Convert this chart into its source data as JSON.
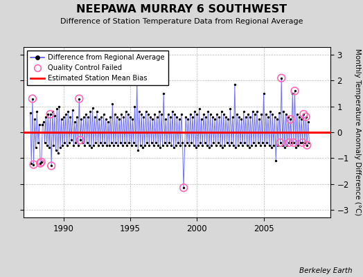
{
  "title": "NEEPAWA MURRAY 6 SOUTHWEST",
  "subtitle": "Difference of Station Temperature Data from Regional Average",
  "ylabel": "Monthly Temperature Anomaly Difference (°C)",
  "xlim": [
    1987.0,
    2010.0
  ],
  "ylim": [
    -3.3,
    3.3
  ],
  "yticks": [
    -3,
    -2,
    -1,
    0,
    1,
    2,
    3
  ],
  "xticks": [
    1990,
    1995,
    2000,
    2005
  ],
  "bias_value": 0.0,
  "line_color": "#5555ff",
  "dot_color": "#000000",
  "bias_color": "#ff0000",
  "qc_color": "#ff69b4",
  "bg_color": "#d8d8d8",
  "plot_bg_color": "#ffffff",
  "berkeley_earth_text": "Berkeley Earth",
  "n_points": 252,
  "start_year": 1987.5,
  "qc_indices": [
    2,
    3,
    9,
    10,
    18,
    19,
    44,
    45,
    96,
    138,
    225,
    226,
    233,
    234,
    237,
    238,
    245,
    246,
    248,
    249
  ],
  "values": [
    0.75,
    -1.2,
    1.3,
    -1.25,
    0.5,
    -0.6,
    0.8,
    -0.4,
    0.3,
    -1.2,
    -1.15,
    0.3,
    0.4,
    -0.4,
    0.6,
    -0.5,
    0.7,
    -0.6,
    0.7,
    -1.3,
    0.8,
    -0.5,
    0.65,
    -0.7,
    0.9,
    -0.8,
    1.0,
    -0.6,
    0.5,
    -0.5,
    0.6,
    -0.4,
    0.7,
    -0.5,
    0.8,
    -0.4,
    0.6,
    -0.3,
    0.85,
    -0.5,
    0.4,
    -0.4,
    0.6,
    -0.5,
    1.3,
    -0.3,
    0.5,
    -0.4,
    0.6,
    -0.5,
    0.7,
    -0.4,
    0.6,
    -0.5,
    0.8,
    -0.6,
    0.95,
    -0.5,
    0.6,
    -0.4,
    0.8,
    -0.5,
    0.5,
    -0.4,
    0.6,
    -0.5,
    0.7,
    -0.4,
    0.5,
    -0.5,
    0.4,
    -0.5,
    0.6,
    -0.4,
    1.1,
    -0.5,
    0.7,
    -0.4,
    0.6,
    -0.5,
    0.5,
    -0.4,
    0.7,
    -0.5,
    0.6,
    -0.4,
    0.8,
    -0.5,
    0.7,
    -0.4,
    0.6,
    -0.5,
    0.5,
    -0.4,
    1.0,
    -0.5,
    2.0,
    -0.7,
    0.8,
    -0.5,
    0.7,
    -0.6,
    0.6,
    -0.5,
    0.8,
    -0.4,
    0.7,
    -0.5,
    0.6,
    -0.4,
    0.5,
    -0.5,
    0.7,
    -0.4,
    0.6,
    -0.5,
    0.8,
    -0.6,
    0.7,
    -0.5,
    1.5,
    -0.4,
    0.5,
    -0.5,
    0.7,
    -0.4,
    0.6,
    -0.5,
    0.8,
    -0.6,
    0.7,
    -0.5,
    0.6,
    -0.4,
    0.5,
    -0.5,
    0.7,
    -0.4,
    -2.15,
    -0.5,
    0.6,
    -0.4,
    0.5,
    -0.5,
    0.7,
    -0.4,
    0.6,
    -0.5,
    0.8,
    -0.6,
    0.7,
    -0.5,
    0.9,
    -0.4,
    0.5,
    -0.5,
    0.7,
    -0.4,
    0.6,
    -0.5,
    0.8,
    -0.6,
    0.7,
    -0.5,
    0.6,
    -0.4,
    0.5,
    -0.5,
    0.7,
    -0.4,
    0.6,
    -0.5,
    0.8,
    -0.6,
    0.7,
    -0.5,
    0.6,
    -0.4,
    0.5,
    -0.5,
    0.9,
    -0.4,
    0.6,
    -0.5,
    1.85,
    -0.6,
    0.7,
    -0.5,
    0.6,
    -0.4,
    0.5,
    -0.5,
    0.8,
    -0.4,
    0.6,
    -0.5,
    0.7,
    -0.6,
    0.6,
    -0.5,
    0.8,
    -0.4,
    0.7,
    -0.5,
    0.8,
    -0.4,
    0.5,
    -0.5,
    0.7,
    -0.4,
    1.5,
    -0.5,
    0.7,
    -0.4,
    0.6,
    -0.5,
    0.8,
    -0.6,
    0.7,
    -0.5,
    0.6,
    -1.1,
    0.5,
    -0.5,
    0.75,
    -0.4,
    2.1,
    -0.5,
    0.8,
    -0.6,
    0.7,
    -0.5,
    0.6,
    -0.4,
    0.5,
    -0.4,
    1.5,
    -0.4,
    1.6,
    -0.6,
    0.7,
    -0.5,
    0.6,
    -0.4,
    0.5,
    -0.4,
    0.7,
    -0.4,
    0.6,
    -0.5,
    0.4,
    -0.4
  ]
}
